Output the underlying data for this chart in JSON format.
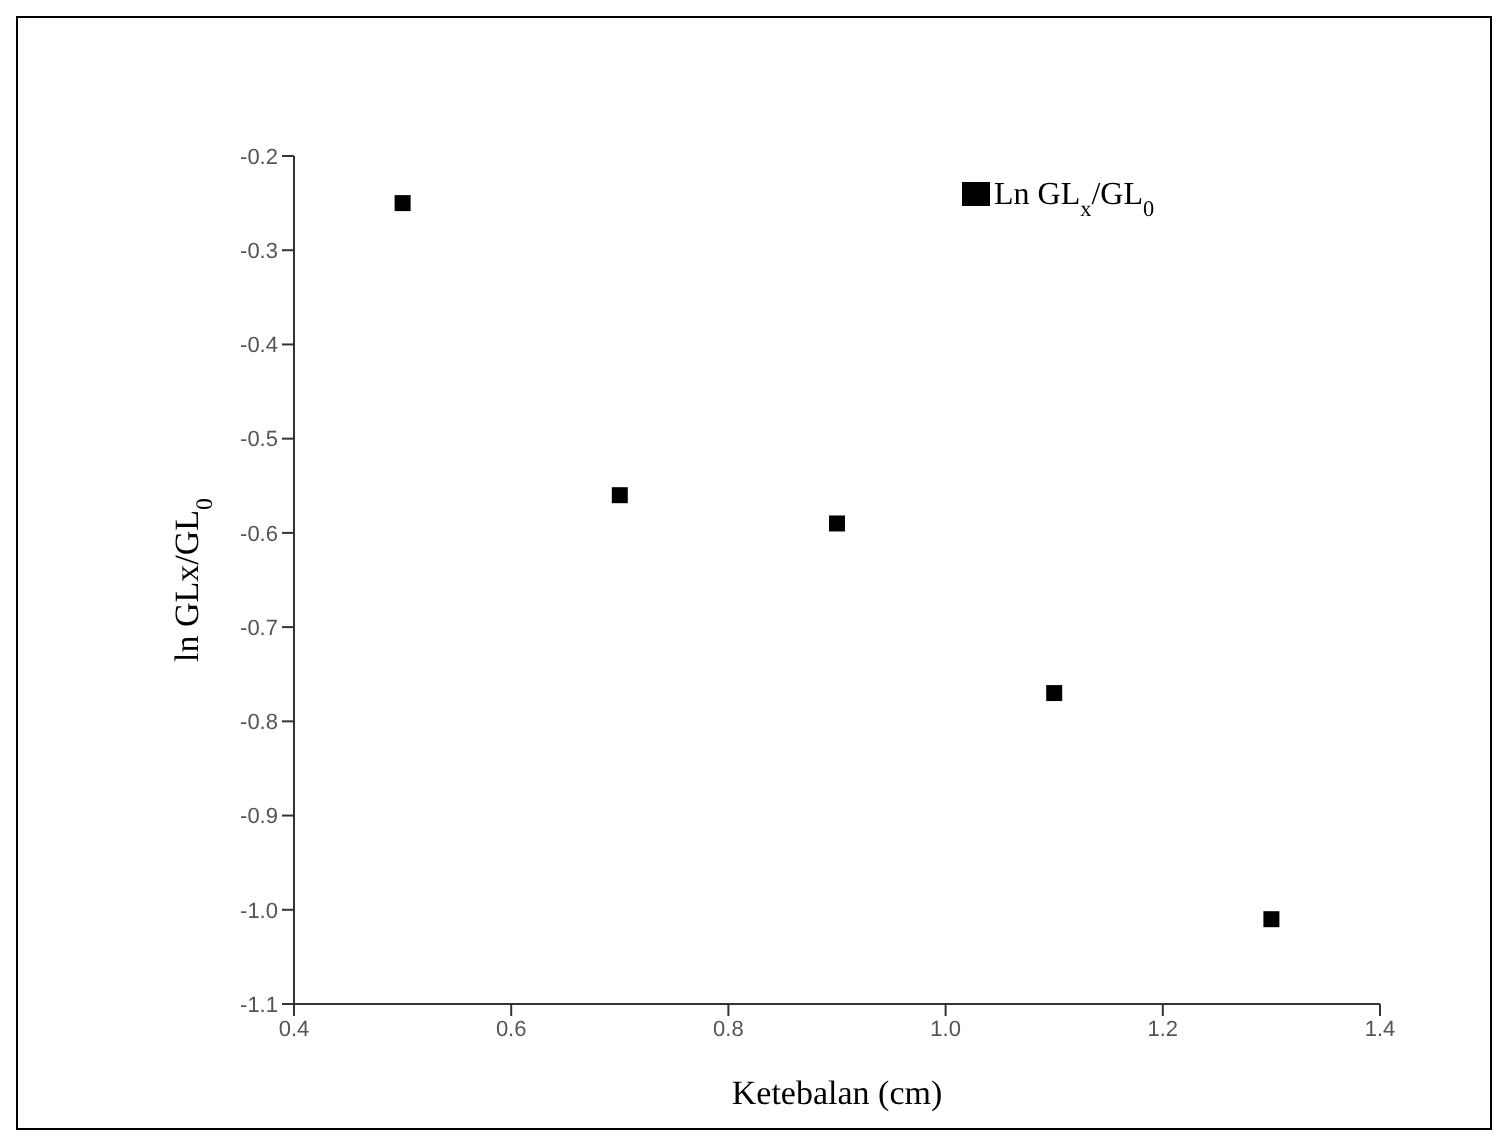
{
  "chart_data": {
    "type": "scatter",
    "xlabel": "Ketebalan (cm)",
    "ylabel": "ln GLx/GL$_{0}$",
    "x": [
      0.5,
      0.7,
      0.9,
      1.1,
      1.3
    ],
    "series": [
      {
        "name": "Ln GL$_{x}$/GL$_{0}$",
        "color": "#000000",
        "values": [
          -0.25,
          -0.56,
          -0.59,
          -0.77,
          -1.01
        ]
      }
    ],
    "xlim": [
      0.4,
      1.4
    ],
    "xticks": [
      0.4,
      0.6,
      0.8,
      {
        "value": 1,
        "label": "1.0"
      },
      1.2,
      1.4
    ],
    "ylim": [
      -1.1,
      -0.2
    ],
    "yticks": [
      -0.2,
      -0.3,
      -0.4,
      -0.5,
      -0.6,
      -0.7,
      -0.8,
      -0.9,
      {
        "value": -1,
        "label": "-1.0"
      },
      -1.1
    ],
    "marker": "square",
    "legend": "top right",
    "grid": false
  }
}
